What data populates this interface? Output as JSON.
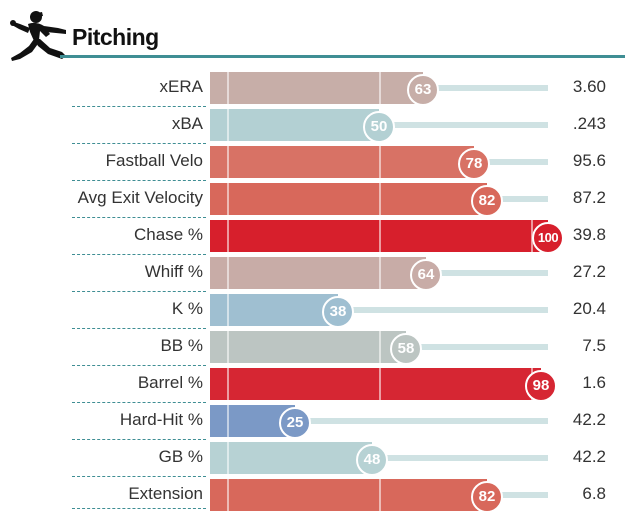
{
  "section": {
    "title": "Pitching",
    "icon": "pitcher-silhouette-icon"
  },
  "colors": {
    "accent": "#3f8e94",
    "track": "#cfe2e3"
  },
  "rows": [
    {
      "label": "xERA",
      "percentile": 63,
      "value": "3.60",
      "color": "#c7aea8"
    },
    {
      "label": "xBA",
      "percentile": 50,
      "value": ".243",
      "color": "#b3d0d3"
    },
    {
      "label": "Fastball Velo",
      "percentile": 78,
      "value": "95.6",
      "color": "#d87265"
    },
    {
      "label": "Avg Exit Velocity",
      "percentile": 82,
      "value": "87.2",
      "color": "#d8685b"
    },
    {
      "label": "Chase %",
      "percentile": 100,
      "value": "39.8",
      "color": "#d71f2c"
    },
    {
      "label": "Whiff %",
      "percentile": 64,
      "value": "27.2",
      "color": "#c8aca7"
    },
    {
      "label": "K %",
      "percentile": 38,
      "value": "20.4",
      "color": "#9fbfd1"
    },
    {
      "label": "BB %",
      "percentile": 58,
      "value": "7.5",
      "color": "#bcc5c2"
    },
    {
      "label": "Barrel %",
      "percentile": 98,
      "value": "1.6",
      "color": "#d62633"
    },
    {
      "label": "Hard-Hit %",
      "percentile": 25,
      "value": "42.2",
      "color": "#7b99c6"
    },
    {
      "label": "GB %",
      "percentile": 48,
      "value": "42.2",
      "color": "#b7d2d4"
    },
    {
      "label": "Extension",
      "percentile": 82,
      "value": "6.8",
      "color": "#d8685b"
    }
  ]
}
